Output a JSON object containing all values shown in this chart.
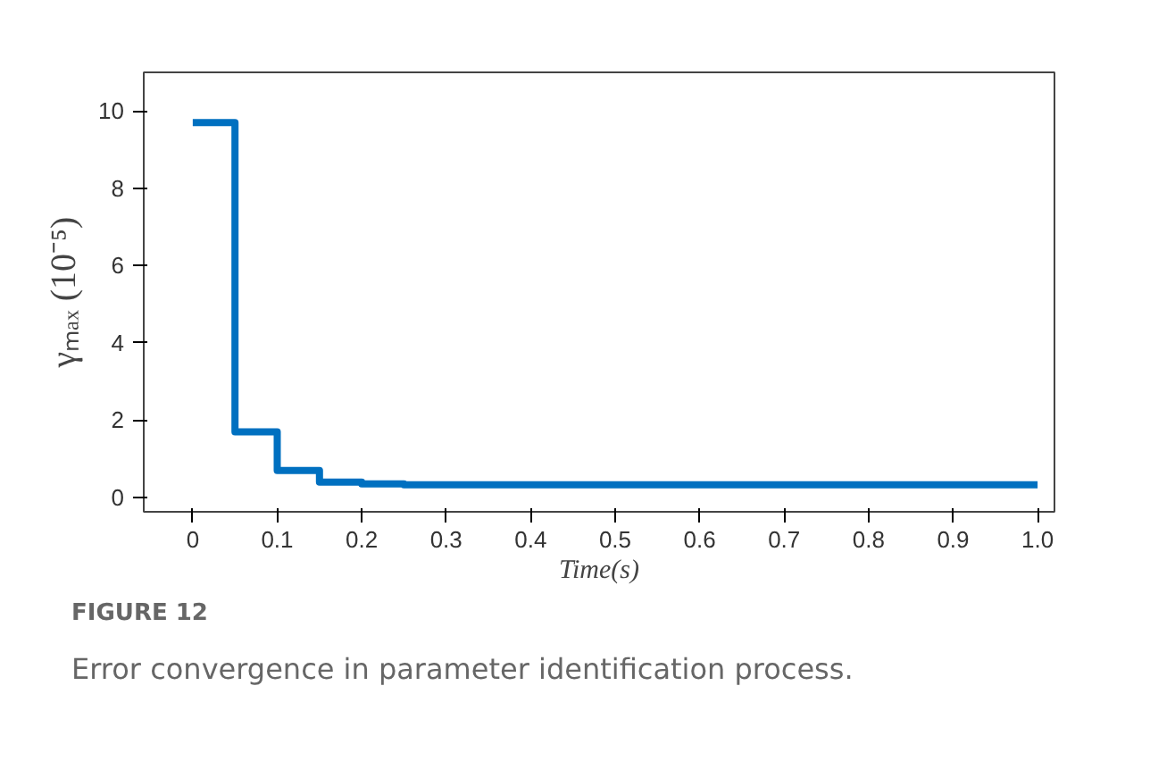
{
  "chart_data": {
    "type": "step",
    "xlabel": "Time(s)",
    "ylabel": "γₘₐₓ (10⁻⁵)",
    "x": [
      0,
      0.05,
      0.1,
      0.15,
      0.2,
      0.25,
      1.0
    ],
    "series": [
      {
        "color": "#0070c0",
        "values": [
          9.7,
          1.7,
          0.7,
          0.4,
          0.35,
          0.33,
          0.33
        ]
      }
    ],
    "xlim": [
      -0.058,
      1.02
    ],
    "ylim": [
      -0.37,
      11
    ],
    "xticks": [
      0,
      0.1,
      0.2,
      0.3,
      0.4,
      0.5,
      0.6,
      0.7,
      0.8,
      0.9,
      {
        "value": 1.0,
        "label": "1.0"
      }
    ],
    "yticks": [
      0,
      2,
      4,
      6,
      8,
      10
    ],
    "grid": false,
    "annotations": [
      "FIGURE 12",
      "Error convergence in parameter identification process."
    ]
  }
}
